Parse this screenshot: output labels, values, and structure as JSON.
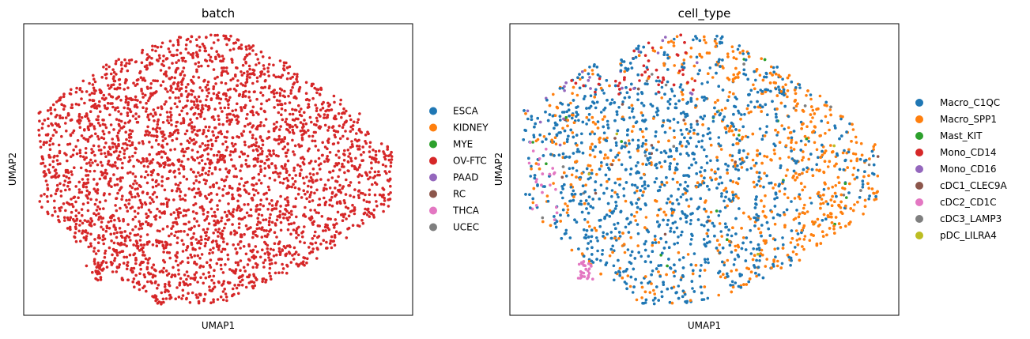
{
  "chart_data": [
    {
      "type": "scatter",
      "title": "batch",
      "xlabel": "UMAP1",
      "ylabel": "UMAP2",
      "grid": false,
      "ticks": false,
      "legend_position": "right",
      "legend": [
        {
          "name": "ESCA",
          "color": "#1f77b4"
        },
        {
          "name": "KIDNEY",
          "color": "#ff7f0e"
        },
        {
          "name": "MYE",
          "color": "#2ca02c"
        },
        {
          "name": "OV-FTC",
          "color": "#d62728"
        },
        {
          "name": "PAAD",
          "color": "#9467bd"
        },
        {
          "name": "RC",
          "color": "#8c564b"
        },
        {
          "name": "THCA",
          "color": "#e377c2"
        },
        {
          "name": "UCEC",
          "color": "#7f7f7f"
        }
      ],
      "point_categories_present": [
        "OV-FTC"
      ]
    },
    {
      "type": "scatter",
      "title": "cell_type",
      "xlabel": "UMAP1",
      "ylabel": "UMAP2",
      "grid": false,
      "ticks": false,
      "legend_position": "right",
      "legend": [
        {
          "name": "Macro_C1QC",
          "color": "#1f77b4"
        },
        {
          "name": "Macro_SPP1",
          "color": "#ff7f0e"
        },
        {
          "name": "Mast_KIT",
          "color": "#2ca02c"
        },
        {
          "name": "Mono_CD14",
          "color": "#d62728"
        },
        {
          "name": "Mono_CD16",
          "color": "#9467bd"
        },
        {
          "name": "cDC1_CLEC9A",
          "color": "#8c564b"
        },
        {
          "name": "cDC2_CD1C",
          "color": "#e377c2"
        },
        {
          "name": "cDC3_LAMP3",
          "color": "#7f7f7f"
        },
        {
          "name": "pDC_LILRA4",
          "color": "#bcbd22"
        }
      ],
      "point_categories_present": [
        "Macro_C1QC",
        "Macro_SPP1",
        "Mast_KIT",
        "Mono_CD14",
        "Mono_CD16",
        "cDC1_CLEC9A",
        "cDC2_CD1C",
        "cDC3_LAMP3",
        "pDC_LILRA4"
      ]
    }
  ]
}
